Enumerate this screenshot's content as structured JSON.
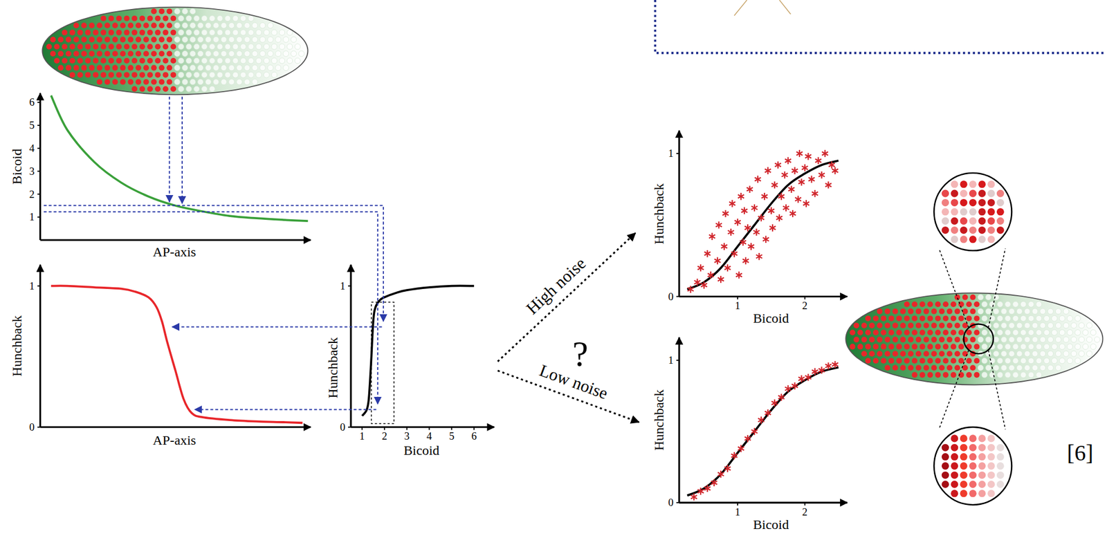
{
  "chart_data": [
    {
      "type": "line",
      "x_label": "AP-axis",
      "y_label": "Bicoid",
      "xlim": [
        0,
        1
      ],
      "ylim": [
        0,
        6.4
      ],
      "yticks": [
        1,
        2,
        3,
        4,
        5,
        6
      ],
      "tick_labels": "y",
      "series": [
        {
          "color": "#3aa03a",
          "line_style": "solid",
          "x": [
            0.04,
            0.1,
            0.2,
            0.3,
            0.4,
            0.5,
            0.6,
            0.7,
            0.8,
            0.9,
            0.99
          ],
          "values": [
            6.3,
            4.8,
            3.4,
            2.5,
            1.9,
            1.5,
            1.25,
            1.05,
            0.95,
            0.88,
            0.83
          ]
        }
      ]
    },
    {
      "type": "line",
      "x_label": "AP-axis",
      "y_label": "Hunchback",
      "xlim": [
        0,
        1
      ],
      "ylim": [
        0,
        1.15
      ],
      "yticks": [
        0,
        1
      ],
      "tick_labels": "y",
      "series": [
        {
          "color": "#e8262a",
          "line_style": "solid",
          "x": [
            0.04,
            0.1,
            0.2,
            0.3,
            0.35,
            0.4,
            0.43,
            0.45,
            0.47,
            0.5,
            0.53,
            0.56,
            0.6,
            0.7,
            0.8,
            0.9,
            0.97
          ],
          "values": [
            1.0,
            1.0,
            0.99,
            0.98,
            0.96,
            0.92,
            0.85,
            0.75,
            0.6,
            0.4,
            0.2,
            0.1,
            0.07,
            0.05,
            0.04,
            0.035,
            0.03
          ]
        }
      ]
    },
    {
      "type": "line",
      "x_label": "Bicoid",
      "y_label": "Hunchback",
      "xlim": [
        0.5,
        6.9
      ],
      "ylim": [
        0,
        1.15
      ],
      "xticks": [
        1,
        2,
        3,
        4,
        5,
        6
      ],
      "yticks": [
        0,
        1
      ],
      "tick_labels": true,
      "series": [
        {
          "color": "#000000",
          "line_style": "solid",
          "x": [
            1.0,
            1.2,
            1.3,
            1.4,
            1.5,
            1.6,
            1.8,
            2.0,
            2.5,
            3,
            4,
            5,
            6
          ],
          "values": [
            0.08,
            0.12,
            0.2,
            0.45,
            0.75,
            0.85,
            0.9,
            0.92,
            0.95,
            0.97,
            0.99,
            1.0,
            1.0
          ]
        }
      ]
    },
    {
      "type": "scatter",
      "x_label": "Bicoid",
      "y_label": "Hunchback",
      "xlim": [
        0.13,
        2.63
      ],
      "ylim": [
        0,
        1.16
      ],
      "xticks": [
        1,
        2
      ],
      "yticks": [
        0,
        1
      ],
      "tick_labels": true,
      "series": [
        {
          "type": "line",
          "color": "#000000",
          "line_style": "solid",
          "x": [
            0.25,
            0.5,
            0.75,
            1.0,
            1.25,
            1.5,
            1.75,
            2.0,
            2.25,
            2.5
          ],
          "values": [
            0.05,
            0.1,
            0.2,
            0.35,
            0.5,
            0.65,
            0.78,
            0.86,
            0.92,
            0.95
          ]
        },
        {
          "type": "scatter",
          "marker": "star",
          "color": "#d0262c",
          "x": [
            0.3,
            0.4,
            0.45,
            0.5,
            0.55,
            0.6,
            0.62,
            0.7,
            0.72,
            0.75,
            0.8,
            0.82,
            0.85,
            0.9,
            0.92,
            0.95,
            1.0,
            1.02,
            1.05,
            1.08,
            1.1,
            1.12,
            1.15,
            1.18,
            1.2,
            1.25,
            1.28,
            1.3,
            1.32,
            1.35,
            1.4,
            1.42,
            1.45,
            1.5,
            1.52,
            1.55,
            1.6,
            1.62,
            1.65,
            1.7,
            1.72,
            1.75,
            1.8,
            1.82,
            1.85,
            1.9,
            1.92,
            1.95,
            2.0,
            2.02,
            2.05,
            2.1,
            2.15,
            2.2,
            2.25,
            2.3,
            2.35,
            2.4,
            2.45
          ],
          "values": [
            0.05,
            0.1,
            0.2,
            0.08,
            0.3,
            0.15,
            0.42,
            0.25,
            0.5,
            0.12,
            0.35,
            0.58,
            0.2,
            0.45,
            0.65,
            0.3,
            0.52,
            0.15,
            0.7,
            0.38,
            0.6,
            0.25,
            0.48,
            0.75,
            0.35,
            0.62,
            0.45,
            0.82,
            0.28,
            0.55,
            0.7,
            0.4,
            0.88,
            0.6,
            0.48,
            0.78,
            0.92,
            0.55,
            0.7,
            0.85,
            0.62,
            0.95,
            0.75,
            0.58,
            0.88,
            0.68,
            1.0,
            0.8,
            0.9,
            0.65,
            0.98,
            0.82,
            0.72,
            0.95,
            0.85,
            1.0,
            0.78,
            0.92,
            0.88
          ]
        }
      ]
    },
    {
      "type": "scatter",
      "x_label": "Bicoid",
      "y_label": "Hunchback",
      "xlim": [
        0.13,
        2.63
      ],
      "ylim": [
        0,
        1.16
      ],
      "xticks": [
        1,
        2
      ],
      "yticks": [
        0,
        1
      ],
      "tick_labels": true,
      "series": [
        {
          "type": "line",
          "color": "#000000",
          "line_style": "solid",
          "x": [
            0.25,
            0.5,
            0.75,
            1.0,
            1.25,
            1.5,
            1.75,
            2.0,
            2.25,
            2.5
          ],
          "values": [
            0.05,
            0.1,
            0.2,
            0.35,
            0.5,
            0.65,
            0.78,
            0.86,
            0.92,
            0.95
          ]
        },
        {
          "type": "scatter",
          "marker": "star",
          "color": "#d0262c",
          "x": [
            0.35,
            0.45,
            0.55,
            0.65,
            0.75,
            0.85,
            0.95,
            1.05,
            1.15,
            1.25,
            1.35,
            1.45,
            1.55,
            1.65,
            1.75,
            1.85,
            1.95,
            2.05,
            2.15,
            2.25,
            2.35,
            2.45
          ],
          "values": [
            0.04,
            0.08,
            0.1,
            0.14,
            0.2,
            0.24,
            0.33,
            0.38,
            0.45,
            0.5,
            0.58,
            0.63,
            0.7,
            0.74,
            0.8,
            0.82,
            0.87,
            0.88,
            0.92,
            0.93,
            0.96,
            0.97
          ]
        }
      ]
    }
  ],
  "labels": {
    "high_noise": "High noise",
    "low_noise": "Low noise",
    "question": "?",
    "citation": "[6]"
  }
}
